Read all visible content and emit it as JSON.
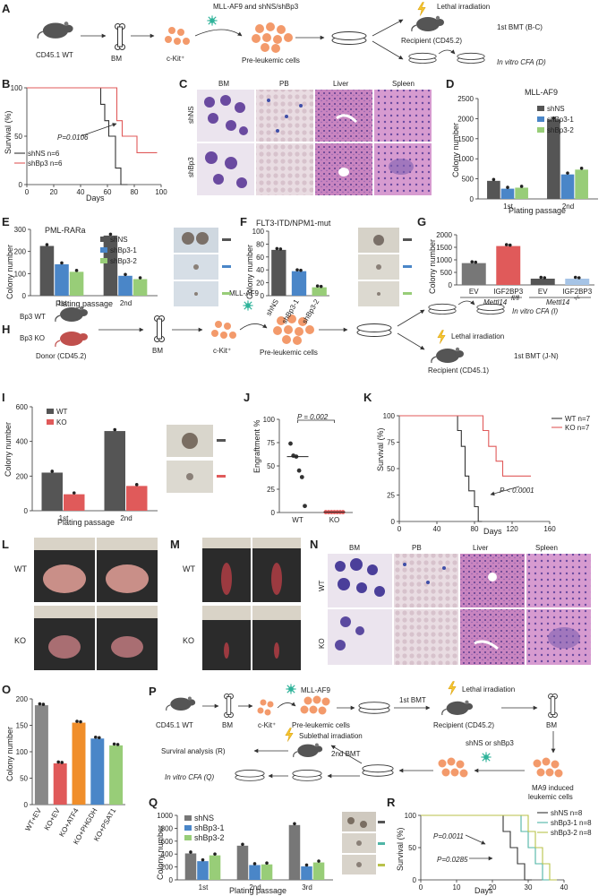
{
  "figure": {
    "panels": {
      "A": {
        "letter": "A",
        "strain": "CD45.1 WT",
        "bm": "BM",
        "ckit": "c-Kit⁺",
        "transduction": "MLL-AF9 and shNS/shBp3",
        "preleukemic": "Pre-leukemic cells",
        "irradiation": "Lethal irradiation",
        "recipient": "Recipient (CD45.2)",
        "bmt": "1st BMT (B-C)",
        "cfa": "In vitro CFA (D)"
      },
      "B": {
        "letter": "B",
        "ylabel": "Survival (%)",
        "xlabel": "Days",
        "pvalue": "P=0.0106"
      },
      "C": {
        "letter": "C",
        "cols": [
          "BM",
          "PB",
          "Liver",
          "Spleen"
        ],
        "rows": [
          "shNS",
          "shBp3"
        ]
      },
      "D": {
        "letter": "D",
        "title": "MLL-AF9",
        "ylabel": "Colony number",
        "xlabel": "Plating passage"
      },
      "E": {
        "letter": "E",
        "title": "PML-RARa",
        "ylabel": "Colony number",
        "xlabel": "Plating passage"
      },
      "F": {
        "letter": "F",
        "title": "FLT3-ITD/NPM1-mut",
        "ylabel": "Colony number"
      },
      "G": {
        "letter": "G",
        "ylabel": "Colony number",
        "group1": "Mettl14",
        "group1_sup": "fl/fl",
        "group2": "Mettl14",
        "group2_sup": "-/-"
      },
      "H": {
        "letter": "H",
        "wt": "Bp3 WT",
        "ko": "Bp3 KO",
        "donor": "Donor (CD45.2)",
        "bm": "BM",
        "ckit": "c-Kit⁺",
        "transduction": "MLL-AF9",
        "preleukemic": "Pre-leukemic cells",
        "cfa": "In vitro CFA (I)",
        "irradiation": "Lethal irradiation",
        "recipient": "Recipient (CD45.1)",
        "bmt": "1st BMT (J-N)"
      },
      "I": {
        "letter": "I",
        "ylabel": "Colony number",
        "xlabel": "Plating passage"
      },
      "J": {
        "letter": "J",
        "ylabel": "Engraftment %",
        "pvalue": "P = 0.002"
      },
      "K": {
        "letter": "K",
        "ylabel": "Survival (%)",
        "xlabel": "Days",
        "pvalue": "P < 0.0001"
      },
      "L": {
        "letter": "L",
        "rows": [
          "WT",
          "KO"
        ]
      },
      "M": {
        "letter": "M",
        "rows": [
          "WT",
          "KO"
        ]
      },
      "N": {
        "letter": "N",
        "cols": [
          "BM",
          "PB",
          "Liver",
          "Spleen"
        ],
        "rows": [
          "WT",
          "KO"
        ]
      },
      "O": {
        "letter": "O",
        "ylabel": "Colony number"
      },
      "P": {
        "letter": "P",
        "strain": "CD45.1 WT",
        "bm": "BM",
        "ckit": "c-Kit⁺",
        "transduction": "MLL-AF9",
        "preleukemic": "Pre-leukemic cells",
        "bmt1": "1st BMT",
        "irradiation": "Lethal irradiation",
        "recipient": "Recipient (CD45.2)",
        "bm2": "BM",
        "shrna": "shNS or shBp3",
        "ma9_1": "MA9 induced",
        "ma9_2": "leukemic cells",
        "bmt2": "2nd BMT",
        "sublethal": "Sublethal irradiation",
        "survival": "Surviral analysis (R)",
        "cfa": "In vitro CFA (Q)"
      },
      "Q": {
        "letter": "Q",
        "ylabel": "Colony number",
        "xlabel": "Plating passage"
      },
      "R": {
        "letter": "R",
        "ylabel": "Survival (%)",
        "xlabel": "Days",
        "pvalue1": "P=0.0011",
        "pvalue2": "P=0.0285"
      }
    }
  },
  "chart_data": [
    {
      "panel": "B",
      "type": "line",
      "xlabel": "Days",
      "ylabel": "Survival (%)",
      "xlim": [
        0,
        100
      ],
      "ylim": [
        0,
        100
      ],
      "x_ticks": [
        0,
        20,
        40,
        60,
        80,
        100
      ],
      "y_ticks": [
        0,
        50,
        100
      ],
      "series": [
        {
          "name": "shNS n=6",
          "color": "#333333",
          "steps": [
            [
              0,
              100
            ],
            [
              55,
              100
            ],
            [
              55,
              83
            ],
            [
              58,
              83
            ],
            [
              58,
              66
            ],
            [
              61,
              66
            ],
            [
              61,
              50
            ],
            [
              66,
              50
            ],
            [
              66,
              17
            ],
            [
              70,
              17
            ],
            [
              70,
              0
            ],
            [
              75,
              0
            ]
          ]
        },
        {
          "name": "shBp3 n=6",
          "color": "#e05a5a",
          "steps": [
            [
              0,
              100
            ],
            [
              67,
              100
            ],
            [
              67,
              66
            ],
            [
              71,
              66
            ],
            [
              71,
              50
            ],
            [
              82,
              50
            ],
            [
              82,
              33
            ],
            [
              97,
              33
            ]
          ]
        }
      ],
      "annotations": [
        "P=0.0106"
      ]
    },
    {
      "panel": "D",
      "type": "bar",
      "title": "MLL-AF9",
      "xlabel": "Plating passage",
      "ylabel": "Colony number",
      "categories": [
        "1st",
        "2nd"
      ],
      "ylim": [
        0,
        2500
      ],
      "y_ticks": [
        0,
        500,
        1000,
        1500,
        2000,
        2500
      ],
      "series": [
        {
          "name": "shNS",
          "color": "#555555",
          "values": [
            450,
            1980
          ]
        },
        {
          "name": "shBp3-1",
          "color": "#4a86c8",
          "values": [
            255,
            610
          ]
        },
        {
          "name": "shBp3-2",
          "color": "#98cd78",
          "values": [
            280,
            730
          ]
        }
      ]
    },
    {
      "panel": "E",
      "type": "bar",
      "title": "PML-RARa",
      "xlabel": "Plating passage",
      "ylabel": "Colony number",
      "categories": [
        "1st",
        "2nd"
      ],
      "ylim": [
        0,
        300
      ],
      "y_ticks": [
        0,
        100,
        200,
        300
      ],
      "series": [
        {
          "name": "shNS",
          "color": "#555555",
          "values": [
            225,
            272
          ]
        },
        {
          "name": "shBp3-1",
          "color": "#4a86c8",
          "values": [
            142,
            90
          ]
        },
        {
          "name": "shBp3-2",
          "color": "#98cd78",
          "values": [
            108,
            75
          ]
        }
      ]
    },
    {
      "panel": "F",
      "type": "bar",
      "title": "FLT3-ITD/NPM1-mut",
      "ylabel": "Colony number",
      "categories": [
        "shNS",
        "shBp3-1",
        "shBp3-2"
      ],
      "values": [
        71,
        38,
        13
      ],
      "colors": [
        "#555555",
        "#4a86c8",
        "#98cd78"
      ],
      "ylim": [
        0,
        100
      ],
      "y_ticks": [
        0,
        20,
        40,
        60,
        80,
        100
      ]
    },
    {
      "panel": "G",
      "type": "bar",
      "ylabel": "Colony number",
      "categories": [
        "EV",
        "IGF2BP3",
        "EV",
        "IGF2BP3"
      ],
      "values": [
        870,
        1550,
        250,
        250
      ],
      "colors": [
        "#777777",
        "#e05a5a",
        "#555555",
        "#a6c4e6"
      ],
      "ylim": [
        0,
        2000
      ],
      "y_ticks": [
        0,
        500,
        1000,
        1500,
        2000
      ]
    },
    {
      "panel": "I",
      "type": "bar",
      "xlabel": "Plating passage",
      "ylabel": "Colony number",
      "categories": [
        "1st",
        "2nd"
      ],
      "ylim": [
        0,
        600
      ],
      "y_ticks": [
        0,
        200,
        400,
        600
      ],
      "series": [
        {
          "name": "WT",
          "color": "#555555",
          "values": [
            220,
            460
          ]
        },
        {
          "name": "KO",
          "color": "#e05a5a",
          "values": [
            95,
            143
          ]
        }
      ]
    },
    {
      "panel": "J",
      "type": "scatter",
      "ylabel": "Engraftment %",
      "categories": [
        "WT",
        "KO"
      ],
      "ylim": [
        0,
        100
      ],
      "y_ticks": [
        0,
        25,
        50,
        75,
        100
      ],
      "series": [
        {
          "name": "WT",
          "color": "#333333",
          "values": [
            74,
            61,
            60,
            45,
            38,
            7
          ],
          "median": 60
        },
        {
          "name": "KO",
          "color": "#e05a5a",
          "values": [
            0.4,
            0.4,
            0.4,
            0.4,
            0.4,
            0.4,
            0.4
          ],
          "median": 0.4
        }
      ],
      "annotations": [
        "P = 0.002"
      ]
    },
    {
      "panel": "K",
      "type": "line",
      "xlabel": "Days",
      "ylabel": "Survival (%)",
      "xlim": [
        0,
        160
      ],
      "ylim": [
        0,
        100
      ],
      "x_ticks": [
        0,
        40,
        80,
        120,
        160
      ],
      "y_ticks": [
        0,
        25,
        50,
        75,
        100
      ],
      "series": [
        {
          "name": "WT n=7",
          "color": "#333333",
          "steps": [
            [
              0,
              100
            ],
            [
              62,
              100
            ],
            [
              62,
              86
            ],
            [
              66,
              86
            ],
            [
              66,
              71
            ],
            [
              70,
              71
            ],
            [
              70,
              43
            ],
            [
              74,
              43
            ],
            [
              74,
              29
            ],
            [
              80,
              29
            ],
            [
              80,
              14
            ],
            [
              84,
              14
            ],
            [
              84,
              0
            ],
            [
              88,
              0
            ]
          ]
        },
        {
          "name": "KO n=7",
          "color": "#e05a5a",
          "steps": [
            [
              0,
              100
            ],
            [
              89,
              100
            ],
            [
              89,
              86
            ],
            [
              95,
              86
            ],
            [
              95,
              71
            ],
            [
              103,
              71
            ],
            [
              103,
              57
            ],
            [
              110,
              57
            ],
            [
              110,
              43
            ],
            [
              140,
              43
            ]
          ]
        }
      ],
      "annotations": [
        "P < 0.0001"
      ]
    },
    {
      "panel": "O",
      "type": "bar",
      "ylabel": "Colony number",
      "categories": [
        "WT+EV",
        "KO+EV",
        "KO+ATF4",
        "KO+PHGDH",
        "KO+PSAT1"
      ],
      "values": [
        188,
        78,
        155,
        125,
        112
      ],
      "colors": [
        "#888888",
        "#e05a5a",
        "#f08e2a",
        "#4a86c8",
        "#98cd78"
      ],
      "ylim": [
        0,
        200
      ],
      "y_ticks": [
        0,
        50,
        100,
        150,
        200
      ]
    },
    {
      "panel": "Q",
      "type": "bar",
      "xlabel": "Plating passage",
      "ylabel": "Colony number",
      "categories": [
        "1st",
        "2nd",
        "3rd"
      ],
      "ylim": [
        0,
        1000
      ],
      "y_ticks": [
        0,
        200,
        400,
        600,
        800,
        1000
      ],
      "series": [
        {
          "name": "shNS",
          "color": "#777777",
          "values": [
            410,
            530,
            850
          ]
        },
        {
          "name": "shBp3-1",
          "color": "#4a86c8",
          "values": [
            290,
            230,
            210
          ]
        },
        {
          "name": "shBp3-2",
          "color": "#98cd78",
          "values": [
            380,
            240,
            270
          ]
        }
      ]
    },
    {
      "panel": "R",
      "type": "line",
      "xlabel": "Days",
      "ylabel": "Survival (%)",
      "xlim": [
        0,
        40
      ],
      "ylim": [
        0,
        100
      ],
      "x_ticks": [
        0,
        10,
        20,
        30,
        40
      ],
      "y_ticks": [
        0,
        50,
        100
      ],
      "series": [
        {
          "name": "shNS n=8",
          "color": "#333333",
          "steps": [
            [
              0,
              100
            ],
            [
              23,
              100
            ],
            [
              23,
              75
            ],
            [
              25,
              75
            ],
            [
              25,
              50
            ],
            [
              27,
              50
            ],
            [
              27,
              25
            ],
            [
              29,
              25
            ],
            [
              29,
              0
            ],
            [
              31,
              0
            ]
          ]
        },
        {
          "name": "shBp3-1 n=8",
          "color": "#4fb5a6",
          "steps": [
            [
              0,
              100
            ],
            [
              28,
              100
            ],
            [
              28,
              75
            ],
            [
              30,
              75
            ],
            [
              30,
              50
            ],
            [
              32,
              50
            ],
            [
              32,
              25
            ],
            [
              34,
              25
            ],
            [
              34,
              0
            ],
            [
              36,
              0
            ]
          ]
        },
        {
          "name": "shBp3-2 n=8",
          "color": "#b9c24a",
          "steps": [
            [
              0,
              100
            ],
            [
              30,
              100
            ],
            [
              30,
              75
            ],
            [
              32,
              75
            ],
            [
              32,
              50
            ],
            [
              34,
              50
            ],
            [
              34,
              25
            ],
            [
              36,
              25
            ],
            [
              36,
              0
            ],
            [
              38,
              0
            ]
          ]
        }
      ],
      "annotations": [
        "P=0.0011",
        "P=0.0285"
      ]
    }
  ]
}
